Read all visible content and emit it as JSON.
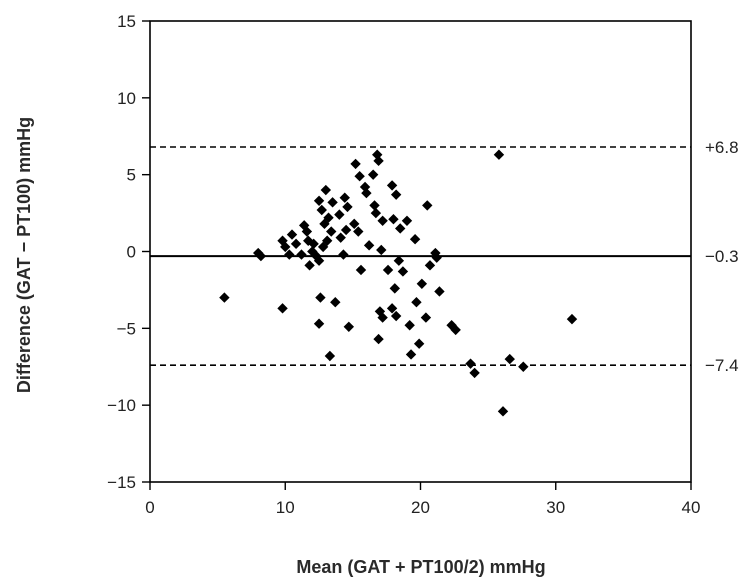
{
  "chart_data": {
    "type": "scatter",
    "title": "",
    "xlabel": "Mean (GAT + PT100/2) mmHg",
    "ylabel": "Difference (GAT − PT100) mmHg",
    "xlim": [
      0,
      40
    ],
    "ylim": [
      -15,
      15
    ],
    "x_ticks": [
      "0",
      "10",
      "20",
      "30",
      "40"
    ],
    "y_ticks": [
      "15",
      "10",
      "5",
      "0",
      "−5",
      "−10",
      "−15"
    ],
    "grid": false,
    "marker": "diamond",
    "marker_color": "#000000",
    "reference_lines": [
      {
        "value": 6.8,
        "label": "+6.8",
        "style": "dashed"
      },
      {
        "value": -0.3,
        "label": "−0.3",
        "style": "solid"
      },
      {
        "value": -7.4,
        "label": "−7.4",
        "style": "dashed"
      }
    ],
    "points": [
      [
        5.5,
        -3.0
      ],
      [
        8.0,
        -0.1
      ],
      [
        8.2,
        -0.3
      ],
      [
        9.8,
        0.7
      ],
      [
        9.8,
        -3.7
      ],
      [
        10.0,
        0.3
      ],
      [
        10.3,
        -0.2
      ],
      [
        10.5,
        1.1
      ],
      [
        10.8,
        0.5
      ],
      [
        11.2,
        -0.2
      ],
      [
        11.4,
        1.7
      ],
      [
        11.6,
        1.3
      ],
      [
        11.7,
        0.7
      ],
      [
        11.8,
        -0.9
      ],
      [
        12.0,
        0.0
      ],
      [
        12.1,
        0.5
      ],
      [
        12.3,
        -0.3
      ],
      [
        12.5,
        -0.6
      ],
      [
        12.5,
        3.3
      ],
      [
        12.7,
        2.7
      ],
      [
        12.6,
        -3.0
      ],
      [
        12.5,
        -4.7
      ],
      [
        12.8,
        0.3
      ],
      [
        12.9,
        1.8
      ],
      [
        13.0,
        4.0
      ],
      [
        13.1,
        0.7
      ],
      [
        13.2,
        2.2
      ],
      [
        13.4,
        1.3
      ],
      [
        13.5,
        3.2
      ],
      [
        13.3,
        -6.8
      ],
      [
        13.7,
        -3.3
      ],
      [
        14.0,
        2.4
      ],
      [
        14.1,
        0.9
      ],
      [
        14.3,
        -0.2
      ],
      [
        14.4,
        3.5
      ],
      [
        14.5,
        1.4
      ],
      [
        14.6,
        2.9
      ],
      [
        14.7,
        -4.9
      ],
      [
        15.1,
        1.8
      ],
      [
        15.2,
        5.7
      ],
      [
        15.4,
        1.3
      ],
      [
        15.5,
        4.9
      ],
      [
        15.6,
        -1.2
      ],
      [
        15.9,
        4.2
      ],
      [
        16.0,
        3.8
      ],
      [
        16.2,
        0.4
      ],
      [
        16.5,
        5.0
      ],
      [
        16.6,
        3.0
      ],
      [
        16.7,
        2.5
      ],
      [
        16.8,
        6.3
      ],
      [
        16.9,
        5.9
      ],
      [
        16.9,
        -5.7
      ],
      [
        17.0,
        -3.9
      ],
      [
        17.1,
        0.1
      ],
      [
        17.2,
        2.0
      ],
      [
        17.2,
        -4.3
      ],
      [
        17.6,
        -1.2
      ],
      [
        17.9,
        4.3
      ],
      [
        17.9,
        -3.7
      ],
      [
        18.0,
        2.1
      ],
      [
        18.1,
        -2.4
      ],
      [
        18.2,
        3.7
      ],
      [
        18.2,
        -4.2
      ],
      [
        18.4,
        -0.6
      ],
      [
        18.5,
        1.5
      ],
      [
        18.7,
        -1.3
      ],
      [
        19.0,
        2.0
      ],
      [
        19.2,
        -4.8
      ],
      [
        19.3,
        -6.7
      ],
      [
        19.6,
        0.8
      ],
      [
        19.7,
        -3.3
      ],
      [
        19.9,
        -6.0
      ],
      [
        20.1,
        -2.1
      ],
      [
        20.4,
        -4.3
      ],
      [
        20.5,
        3.0
      ],
      [
        20.7,
        -0.9
      ],
      [
        21.1,
        -0.1
      ],
      [
        21.2,
        -0.4
      ],
      [
        21.4,
        -2.6
      ],
      [
        22.3,
        -4.8
      ],
      [
        22.6,
        -5.1
      ],
      [
        23.7,
        -7.3
      ],
      [
        24.0,
        -7.9
      ],
      [
        25.8,
        6.3
      ],
      [
        26.1,
        -10.4
      ],
      [
        26.6,
        -7.0
      ],
      [
        27.6,
        -7.5
      ],
      [
        31.2,
        -4.4
      ]
    ]
  }
}
